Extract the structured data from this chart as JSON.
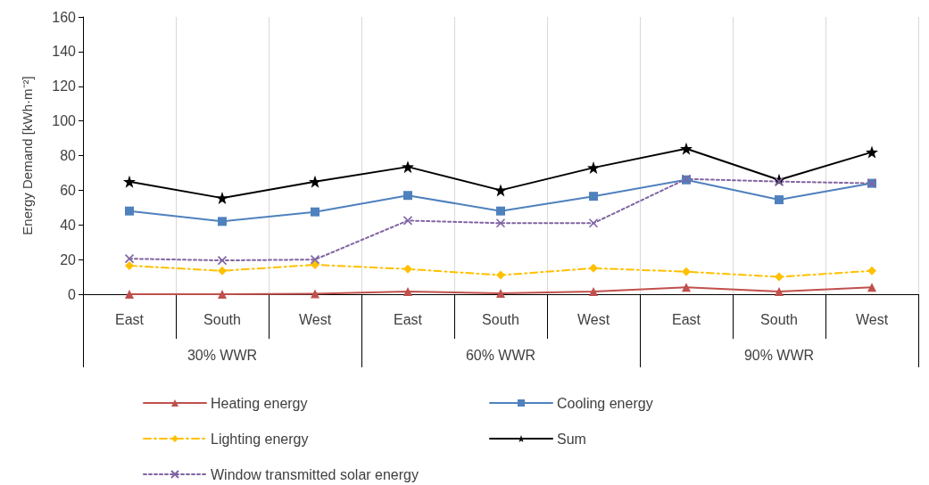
{
  "chart_data": {
    "type": "line",
    "ylabel": "Energy Demand [kWh·m⁻²]",
    "categories": [
      "East",
      "South",
      "West",
      "East",
      "South",
      "West",
      "East",
      "South",
      "West"
    ],
    "annotations": [
      "30% WWR",
      "60% WWR",
      "90% WWR"
    ],
    "series": [
      {
        "name": "Heating energy",
        "color": "#c0504d",
        "marker": "triangle",
        "line_style": "solid",
        "values": [
          0,
          0,
          0.3,
          1.5,
          0.5,
          1.5,
          4,
          1.5,
          4
        ]
      },
      {
        "name": "Cooling energy",
        "color": "#4f81bd",
        "marker": "square",
        "line_style": "solid",
        "values": [
          48,
          42,
          47.5,
          57,
          48,
          56.5,
          66,
          54.5,
          64
        ]
      },
      {
        "name": "Lighting energy",
        "color": "#ffc000",
        "marker": "diamond",
        "line_style": "dashed",
        "values": [
          16.5,
          13.5,
          17,
          14.5,
          11,
          15,
          13,
          10,
          13.5
        ]
      },
      {
        "name": "Sum",
        "color": "#000000",
        "marker": "star",
        "line_style": "solid",
        "values": [
          65,
          55.5,
          65,
          73.5,
          60,
          73,
          84,
          66,
          82
        ]
      },
      {
        "name": "Window transmitted solar energy",
        "color": "#8064a2",
        "marker": "cross",
        "line_style": "dotted",
        "values": [
          20.5,
          19.5,
          20,
          42.5,
          41,
          41,
          66.5,
          65,
          64
        ]
      }
    ],
    "ylim": [
      0,
      160
    ],
    "yticks": [
      0,
      20,
      40,
      60,
      80,
      100,
      120,
      140,
      160
    ],
    "grid": "x",
    "legend": "bottom"
  }
}
